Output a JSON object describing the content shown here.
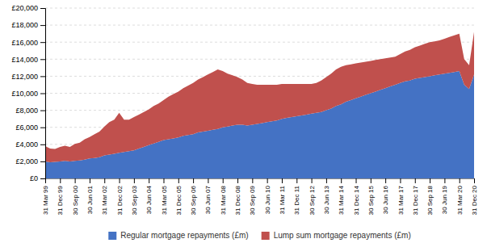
{
  "chart_data": {
    "type": "area",
    "stacked": true,
    "grid": true,
    "legend": "bottom",
    "categories": [
      "31 Mar 99",
      null,
      null,
      "31 Dec 99",
      null,
      null,
      "30 Sep 00",
      null,
      null,
      "30 Jun 01",
      null,
      null,
      "31 Mar 02",
      null,
      null,
      "31 Dec 02",
      null,
      null,
      "30 Sep 03",
      null,
      null,
      "30 Jun 04",
      null,
      null,
      "31 Mar 05",
      null,
      null,
      "31 Dec 05",
      null,
      null,
      "30 Sep 06",
      null,
      null,
      "30 Jun 07",
      null,
      null,
      "31 Mar 08",
      null,
      null,
      "31 Dec 08",
      null,
      null,
      "30 Sep 09",
      null,
      null,
      "30 Jun 10",
      null,
      null,
      "31 Mar 11",
      null,
      null,
      "31 Dec 11",
      null,
      null,
      "30 Sep 12",
      null,
      null,
      "30 Jun 13",
      null,
      null,
      "31 Mar 14",
      null,
      null,
      "31 Dec 14",
      null,
      null,
      "30 Sep 15",
      null,
      null,
      "30 Jun 16",
      null,
      null,
      "31 Mar 17",
      null,
      null,
      "31 Dec 17",
      null,
      null,
      "30 Sep 18",
      null,
      null,
      "30 Jun 19",
      null,
      null,
      "31 Mar 20",
      null,
      null,
      "31 Dec 20"
    ],
    "series": [
      {
        "name": "Regular mortgage repayments (£m)",
        "color": "#4472C4",
        "values": [
          2000,
          1900,
          1950,
          2000,
          2050,
          2000,
          2050,
          2100,
          2200,
          2350,
          2400,
          2500,
          2700,
          2800,
          2900,
          3000,
          3100,
          3200,
          3300,
          3500,
          3700,
          3900,
          4100,
          4300,
          4500,
          4600,
          4700,
          4800,
          5000,
          5100,
          5200,
          5400,
          5500,
          5600,
          5700,
          5800,
          6000,
          6100,
          6200,
          6300,
          6300,
          6200,
          6300,
          6400,
          6500,
          6600,
          6700,
          6800,
          7000,
          7100,
          7200,
          7300,
          7400,
          7500,
          7600,
          7700,
          7800,
          8000,
          8200,
          8500,
          8700,
          9000,
          9200,
          9400,
          9600,
          9800,
          10000,
          10200,
          10400,
          10600,
          10800,
          11000,
          11200,
          11400,
          11500,
          11700,
          11800,
          11900,
          12000,
          12100,
          12200,
          12300,
          12400,
          12500,
          12600,
          11000,
          10500,
          12200
        ]
      },
      {
        "name": "Lump sum mortgage repayments (£m)",
        "color": "#C0504D",
        "values": [
          1800,
          1600,
          1500,
          1700,
          1800,
          1700,
          2000,
          2100,
          2400,
          2500,
          2800,
          3000,
          3400,
          3800,
          4000,
          4700,
          3800,
          3700,
          3900,
          4000,
          4100,
          4200,
          4400,
          4500,
          4700,
          5000,
          5200,
          5400,
          5600,
          5800,
          6000,
          6200,
          6400,
          6600,
          6800,
          7000,
          6600,
          6200,
          5900,
          5600,
          5300,
          5000,
          4800,
          4600,
          4500,
          4400,
          4300,
          4200,
          4100,
          4000,
          3900,
          3800,
          3700,
          3600,
          3500,
          3500,
          3700,
          3900,
          4100,
          4300,
          4400,
          4300,
          4200,
          4100,
          4000,
          3900,
          3800,
          3700,
          3600,
          3500,
          3400,
          3300,
          3400,
          3500,
          3600,
          3700,
          3800,
          3900,
          4000,
          4000,
          4000,
          4100,
          4200,
          4300,
          4400,
          3000,
          2800,
          5000
        ]
      }
    ],
    "ylim": [
      0,
      20000
    ],
    "yticks": [
      {
        "value": 0,
        "label": "£0"
      },
      {
        "value": 2000,
        "label": "£2,000"
      },
      {
        "value": 4000,
        "label": "£4,000"
      },
      {
        "value": 6000,
        "label": "£6,000"
      },
      {
        "value": 8000,
        "label": "£8,000"
      },
      {
        "value": 10000,
        "label": "£10,000"
      },
      {
        "value": 12000,
        "label": "£12,000"
      },
      {
        "value": 14000,
        "label": "£14,000"
      },
      {
        "value": 16000,
        "label": "£16,000"
      },
      {
        "value": 18000,
        "label": "£18,000"
      },
      {
        "value": 20000,
        "label": "£20,000"
      }
    ]
  }
}
